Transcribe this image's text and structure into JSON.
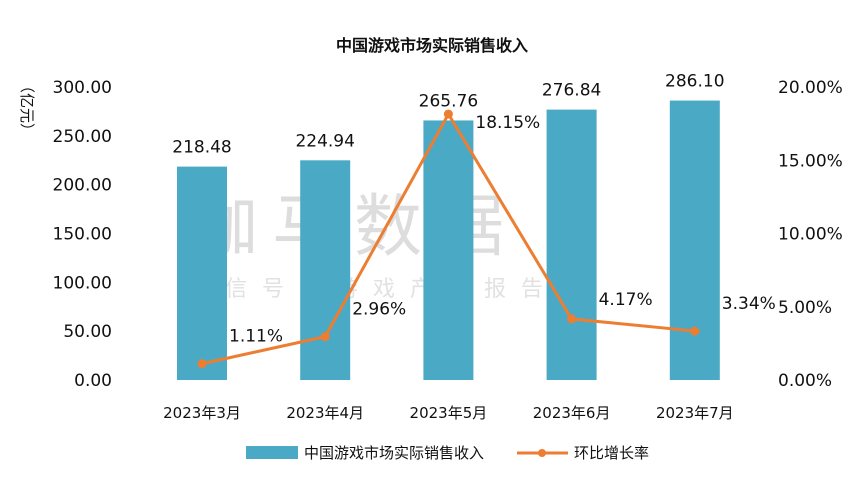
{
  "chart_data": {
    "type": "bar+line",
    "title": "中国游戏市场实际销售收入",
    "ylabel": "（亿元）",
    "categories": [
      "2023年3月",
      "2023年4月",
      "2023年5月",
      "2023年6月",
      "2023年7月"
    ],
    "series": [
      {
        "name": "中国游戏市场实际销售收入",
        "type": "bar",
        "axis": "left",
        "values": [
          218.48,
          224.94,
          265.76,
          276.84,
          286.1
        ],
        "labels": [
          "218.48",
          "224.94",
          "265.76",
          "276.84",
          "286.10"
        ],
        "color": "#4aaac6"
      },
      {
        "name": "环比增长率",
        "type": "line",
        "axis": "right",
        "values": [
          1.11,
          2.96,
          18.15,
          4.17,
          3.34
        ],
        "labels": [
          "1.11%",
          "2.96%",
          "18.15%",
          "4.17%",
          "3.34%"
        ],
        "color": "#ed7d31"
      }
    ],
    "ylim": [
      0,
      300
    ],
    "yticks": [
      "0.00",
      "50.00",
      "100.00",
      "150.00",
      "200.00",
      "250.00",
      "300.00"
    ],
    "y2lim": [
      0,
      20
    ],
    "y2ticks": [
      "0.00%",
      "5.00%",
      "10.00%",
      "15.00%",
      "20.00%"
    ],
    "grid": false,
    "legend": "bottom"
  },
  "watermark": {
    "main": "伽马数据",
    "sub": "微信号：游戏产业报告"
  }
}
